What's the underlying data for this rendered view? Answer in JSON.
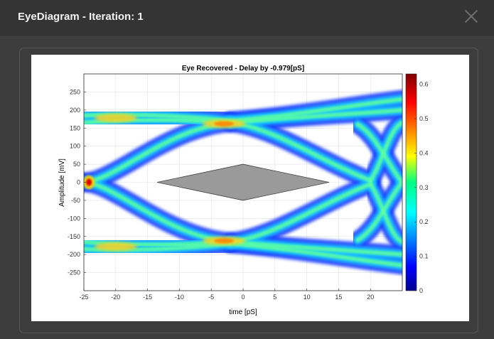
{
  "dialog": {
    "title": "EyeDiagram - Iteration: 1"
  },
  "chart_data": {
    "type": "heatmap",
    "title": "Eye Recovered - Delay by -0.979[pS]",
    "xlabel": "time [pS]",
    "ylabel": "Amplitude [mV]",
    "xlim": [
      -25,
      25
    ],
    "ylim": [
      -300,
      300
    ],
    "xticks": [
      -25,
      -20,
      -15,
      -10,
      -5,
      0,
      5,
      10,
      15,
      20
    ],
    "yticks": [
      250,
      200,
      150,
      100,
      50,
      0,
      -50,
      -100,
      -150,
      -200,
      -250
    ],
    "colorbar": {
      "min": 0,
      "max": 0.63,
      "ticks": [
        0,
        0.1,
        0.2,
        0.3,
        0.4,
        0.5,
        0.6
      ],
      "colormap": "jet"
    },
    "eye_mask": [
      [
        -13.5,
        0
      ],
      [
        0,
        50
      ],
      [
        13.5,
        0
      ],
      [
        0,
        -50
      ]
    ],
    "grid": true
  }
}
